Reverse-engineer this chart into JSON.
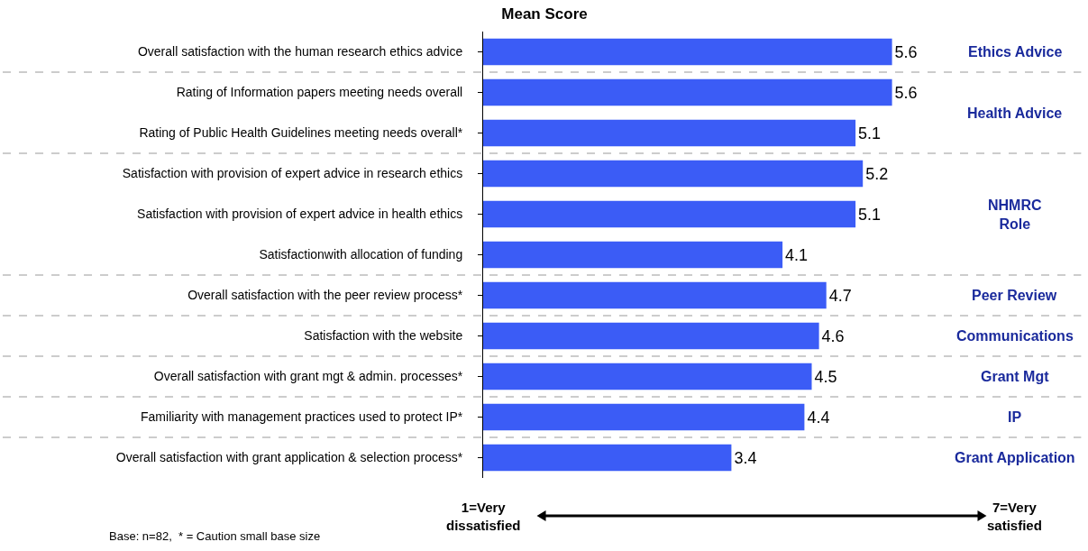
{
  "chart_data": {
    "type": "bar",
    "orientation": "horizontal",
    "title": "Mean Score",
    "categories": [
      "Overall satisfaction with the human research ethics advice",
      "Rating of Information papers meeting needs overall",
      "Rating of Public Health Guidelines meeting needs overall*",
      "Satisfaction with provision of expert advice in research ethics",
      "Satisfaction with provision of expert advice in health ethics",
      "Satisfactionwith allocation of funding",
      "Overall satisfaction with the peer review process*",
      "Satisfaction with the website",
      "Overall satisfaction with grant mgt & admin. processes*",
      "Familiarity with management practices used to protect IP*",
      "Overall satisfaction with grant application & selection process*"
    ],
    "values": [
      5.6,
      5.6,
      5.1,
      5.2,
      5.1,
      4.1,
      4.7,
      4.6,
      4.5,
      4.4,
      3.4
    ],
    "color": "#3b5cf6",
    "data_labels": true,
    "tick_labels": "y",
    "annotations": [
      "Ethics Advice",
      "Health Advice",
      "NHMRC\nRole",
      "Peer Review",
      "Communications",
      "Grant Mgt",
      "IP",
      "Grant Application",
      "1=Very\ndissatisfied",
      "7=Very\nsatisfied",
      "Base: n=82,  * = Caution small base size"
    ]
  }
}
